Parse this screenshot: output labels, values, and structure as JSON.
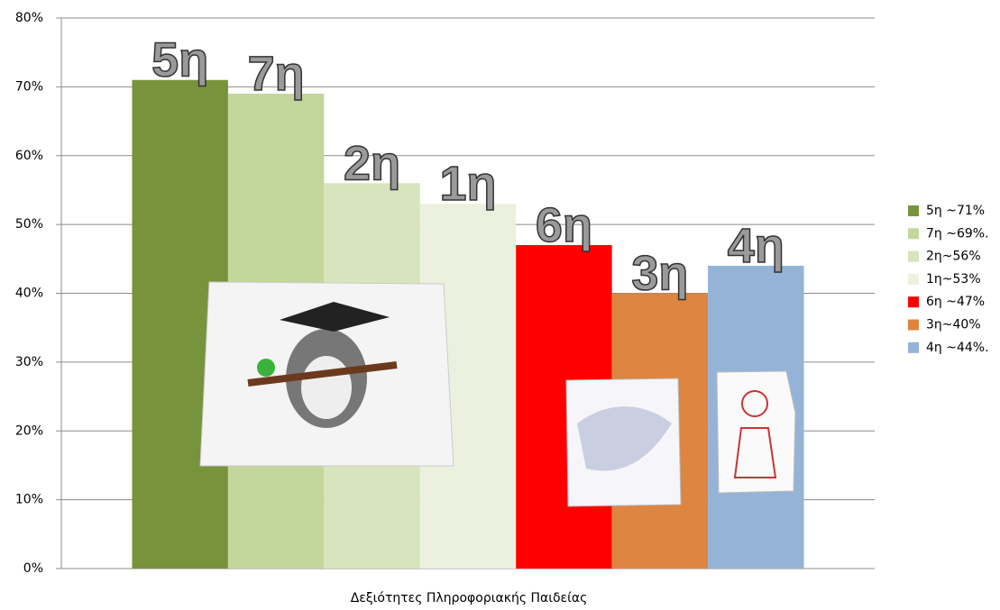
{
  "chart_data": {
    "type": "bar",
    "categories": [
      "Δεξιότητες Πληροφοριακής Παιδείας"
    ],
    "series": [
      {
        "name": "5η ~71%",
        "color": "#77933c",
        "values": [
          71
        ]
      },
      {
        "name": "7η ~69%.",
        "color": "#c3d69b",
        "values": [
          69
        ]
      },
      {
        "name": "2η~56%",
        "color": "#d7e4bd",
        "values": [
          56
        ]
      },
      {
        "name": "1η~53%",
        "color": "#ebf1de",
        "values": [
          53
        ]
      },
      {
        "name": "6η ~47%",
        "color": "#ff0000",
        "values": [
          47
        ]
      },
      {
        "name": "3η~40%",
        "color": "#dd8541",
        "values": [
          40
        ]
      },
      {
        "name": "4η ~44%.",
        "color": "#95b3d7",
        "values": [
          44
        ]
      }
    ],
    "bar_labels": [
      "5η",
      "7η",
      "2η",
      "1η",
      "6η",
      "3η",
      "4η"
    ],
    "ylim": [
      0,
      80
    ],
    "yticks": [
      {
        "value": 0,
        "label": "0%"
      },
      {
        "value": 10,
        "label": "10%"
      },
      {
        "value": 20,
        "label": "20%"
      },
      {
        "value": 30,
        "label": "30%"
      },
      {
        "value": 40,
        "label": "40%"
      },
      {
        "value": 50,
        "label": "50%"
      },
      {
        "value": 60,
        "label": "60%"
      },
      {
        "value": 70,
        "label": "70%"
      },
      {
        "value": 80,
        "label": "80%"
      }
    ],
    "grid": true,
    "legend": "right"
  }
}
